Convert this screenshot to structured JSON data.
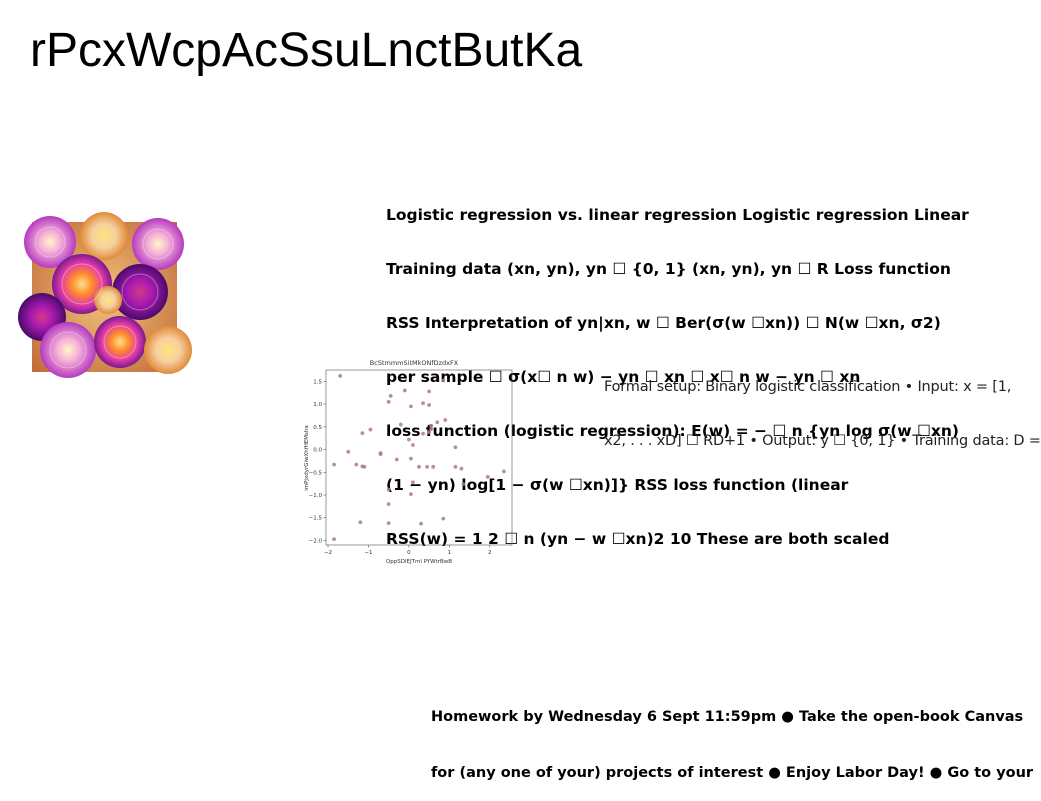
{
  "page_title": "rPcxWcpAcSsuLnctButKa",
  "block_bold": {
    "lines": [
      "Logistic regression vs. linear regression Logistic regression Linear",
      "Training data (xn, yn), yn ☐ {0, 1} (xn, yn), yn ☐ R Loss function",
      "RSS Interpretation of yn|xn, w ☐ Ber(σ(w ☐xn)) ☐ N(w ☐xn, σ2)",
      "per sample ☐ σ(x☐ n w) − yn ☐ xn ☐ x☐ n w − yn ☐ xn",
      "loss function (logistic regression): E(w) = − ☐ n {yn log σ(w ☐xn)",
      "(1 − yn) log[1 − σ(w ☐xn)]} RSS loss function (linear",
      "RSS(w) = 1 2 ☐ n (yn − w ☐xn)2 10 These are both scaled"
    ]
  },
  "block_light": {
    "lines": [
      "Formal setup: Binary logistic classification • Input: x = [1,",
      "x2, . . . xD] ☐ RD+1 • Output: y ☐ {0, 1} • Training data: D ="
    ]
  },
  "block_footer": {
    "lines": [
      "Homework by Wednesday 6 Sept 11:59pm ● Take the open-book Canvas",
      "for (any one of your) projects of interest ● Enjoy Labor Day! ● Go to your"
    ]
  },
  "chart_data": {
    "type": "scatter",
    "title": "BcStmmmSitMkONfDzdxFX",
    "xlabel": "OppSDlEJTml PYWtrBwB",
    "ylabel": "imPjxdyrGiwXhfHEMsha",
    "xlim": [
      -2.05,
      2.55
    ],
    "ylim": [
      -2.1,
      1.75
    ],
    "x_ticks": [
      "−2",
      "−1",
      "0",
      "1",
      "2"
    ],
    "x_tick_values": [
      -2,
      -1,
      0,
      1,
      2
    ],
    "y_ticks": [
      "−2.0",
      "−1.5",
      "−1.0",
      "−0.5",
      "0.0",
      "0.5",
      "1.0",
      "1.5"
    ],
    "y_tick_values": [
      -2.0,
      -1.5,
      -1.0,
      -0.5,
      0.0,
      0.5,
      1.0,
      1.5
    ],
    "grid": false,
    "point_color": "#b07a88",
    "points": [
      [
        -1.7,
        1.62
      ],
      [
        -0.1,
        1.3
      ],
      [
        0.5,
        1.28
      ],
      [
        0.85,
        1.52
      ],
      [
        -0.45,
        1.18
      ],
      [
        -0.5,
        1.05
      ],
      [
        0.35,
        1.02
      ],
      [
        0.5,
        0.98
      ],
      [
        0.05,
        0.95
      ],
      [
        -1.15,
        0.36
      ],
      [
        -0.95,
        0.44
      ],
      [
        0.55,
        0.52
      ],
      [
        0.7,
        0.6
      ],
      [
        0.9,
        0.65
      ],
      [
        0.55,
        0.45
      ],
      [
        -0.2,
        0.55
      ],
      [
        0.0,
        0.22
      ],
      [
        0.1,
        0.1
      ],
      [
        0.35,
        0.35
      ],
      [
        0.5,
        0.38
      ],
      [
        1.15,
        0.05
      ],
      [
        -1.5,
        -0.05
      ],
      [
        -0.7,
        -0.08
      ],
      [
        -0.7,
        -0.1
      ],
      [
        -0.3,
        -0.22
      ],
      [
        0.05,
        -0.2
      ],
      [
        -1.85,
        -0.33
      ],
      [
        -1.3,
        -0.33
      ],
      [
        -1.15,
        -0.37
      ],
      [
        -1.1,
        -0.38
      ],
      [
        0.25,
        -0.38
      ],
      [
        0.45,
        -0.38
      ],
      [
        0.6,
        -0.38
      ],
      [
        1.15,
        -0.38
      ],
      [
        1.3,
        -0.42
      ],
      [
        2.35,
        -0.48
      ],
      [
        1.95,
        -0.6
      ],
      [
        0.1,
        -0.72
      ],
      [
        1.35,
        -0.76
      ],
      [
        -0.5,
        -0.88
      ],
      [
        0.05,
        -0.98
      ],
      [
        -0.5,
        -1.2
      ],
      [
        -1.2,
        -1.6
      ],
      [
        -0.5,
        -1.62
      ],
      [
        0.3,
        -1.63
      ],
      [
        0.85,
        -1.52
      ],
      [
        -1.85,
        -1.97
      ]
    ]
  }
}
